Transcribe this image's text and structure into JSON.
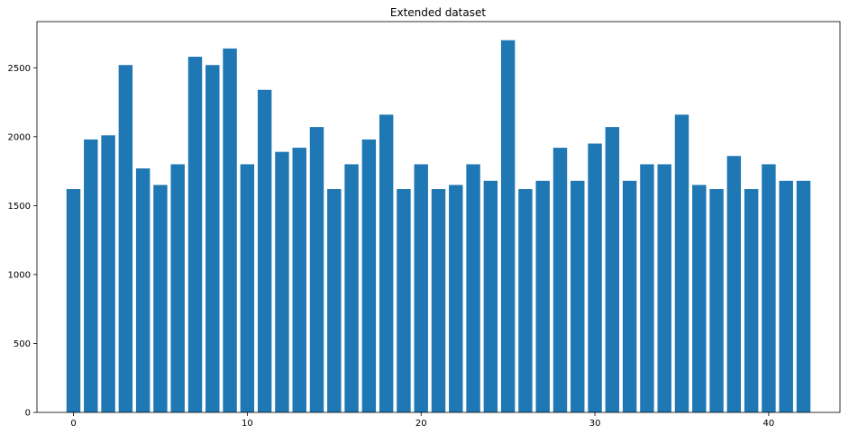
{
  "chart_data": {
    "type": "bar",
    "title": "Extended dataset",
    "xlabel": "",
    "ylabel": "",
    "x": [
      0,
      1,
      2,
      3,
      4,
      5,
      6,
      7,
      8,
      9,
      10,
      11,
      12,
      13,
      14,
      15,
      16,
      17,
      18,
      19,
      20,
      21,
      22,
      23,
      24,
      25,
      26,
      27,
      28,
      29,
      30,
      31,
      32,
      33,
      34,
      35,
      36,
      37,
      38,
      39,
      40,
      41,
      42
    ],
    "values": [
      1620,
      1980,
      2010,
      2520,
      1770,
      1650,
      1800,
      2580,
      2520,
      2640,
      1800,
      2340,
      1890,
      1920,
      2070,
      1620,
      1800,
      1980,
      2160,
      1620,
      1800,
      1620,
      1650,
      1800,
      1680,
      2700,
      1620,
      1680,
      1920,
      1680,
      1950,
      2070,
      1680,
      1800,
      1800,
      2160,
      1650,
      1620,
      1860,
      1620,
      1800,
      1680,
      1680
    ],
    "xlim": [
      -2.1,
      44.1
    ],
    "ylim": [
      0,
      2835
    ],
    "xticks": [
      0,
      10,
      20,
      30,
      40
    ],
    "yticks": [
      0,
      500,
      1000,
      1500,
      2000,
      2500
    ],
    "bar_width": 0.8,
    "grid": false,
    "bar_color": "#1f77b4"
  }
}
